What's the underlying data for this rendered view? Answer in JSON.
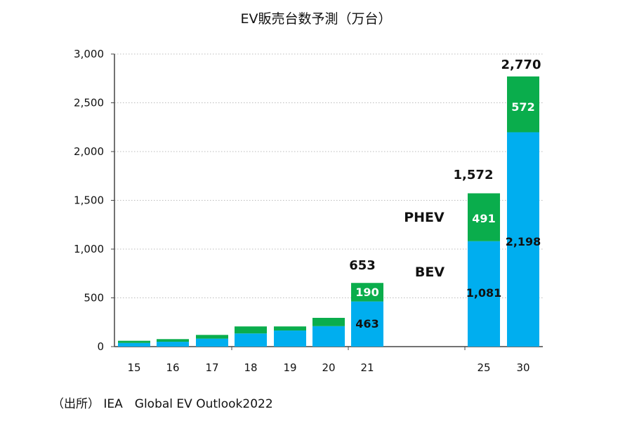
{
  "chart_data": {
    "type": "bar",
    "stacked": true,
    "title": "EV販売台数予測（万台）",
    "source": "（出所） IEA　Global EV Outlook2022",
    "categories": [
      "15",
      "16",
      "17",
      "18",
      "19",
      "20",
      "21",
      "25",
      "30"
    ],
    "series": [
      {
        "name": "BEV",
        "color": "#00aeef",
        "values": [
          38,
          50,
          82,
          135,
          165,
          210,
          463,
          1081,
          2198
        ]
      },
      {
        "name": "PHEV",
        "color": "#0aad4c",
        "values": [
          22,
          27,
          38,
          72,
          42,
          85,
          190,
          491,
          572
        ]
      }
    ],
    "totals": [
      60,
      77,
      120,
      207,
      207,
      295,
      653,
      1572,
      2770
    ],
    "data_labels": {
      "BEV": {
        "21": "463",
        "25": "1,081",
        "30": "2,198"
      },
      "PHEV": {
        "21": "190",
        "25": "491",
        "30": "572"
      },
      "total": {
        "21": "653",
        "25": "1,572",
        "30": "2,770"
      }
    },
    "ylim": [
      0,
      3000
    ],
    "yticks": [
      "0",
      "500",
      "1,000",
      "1,500",
      "2,000",
      "2,500",
      "3,000"
    ],
    "grid": true,
    "legend": "inline labels between 21 and 25"
  }
}
